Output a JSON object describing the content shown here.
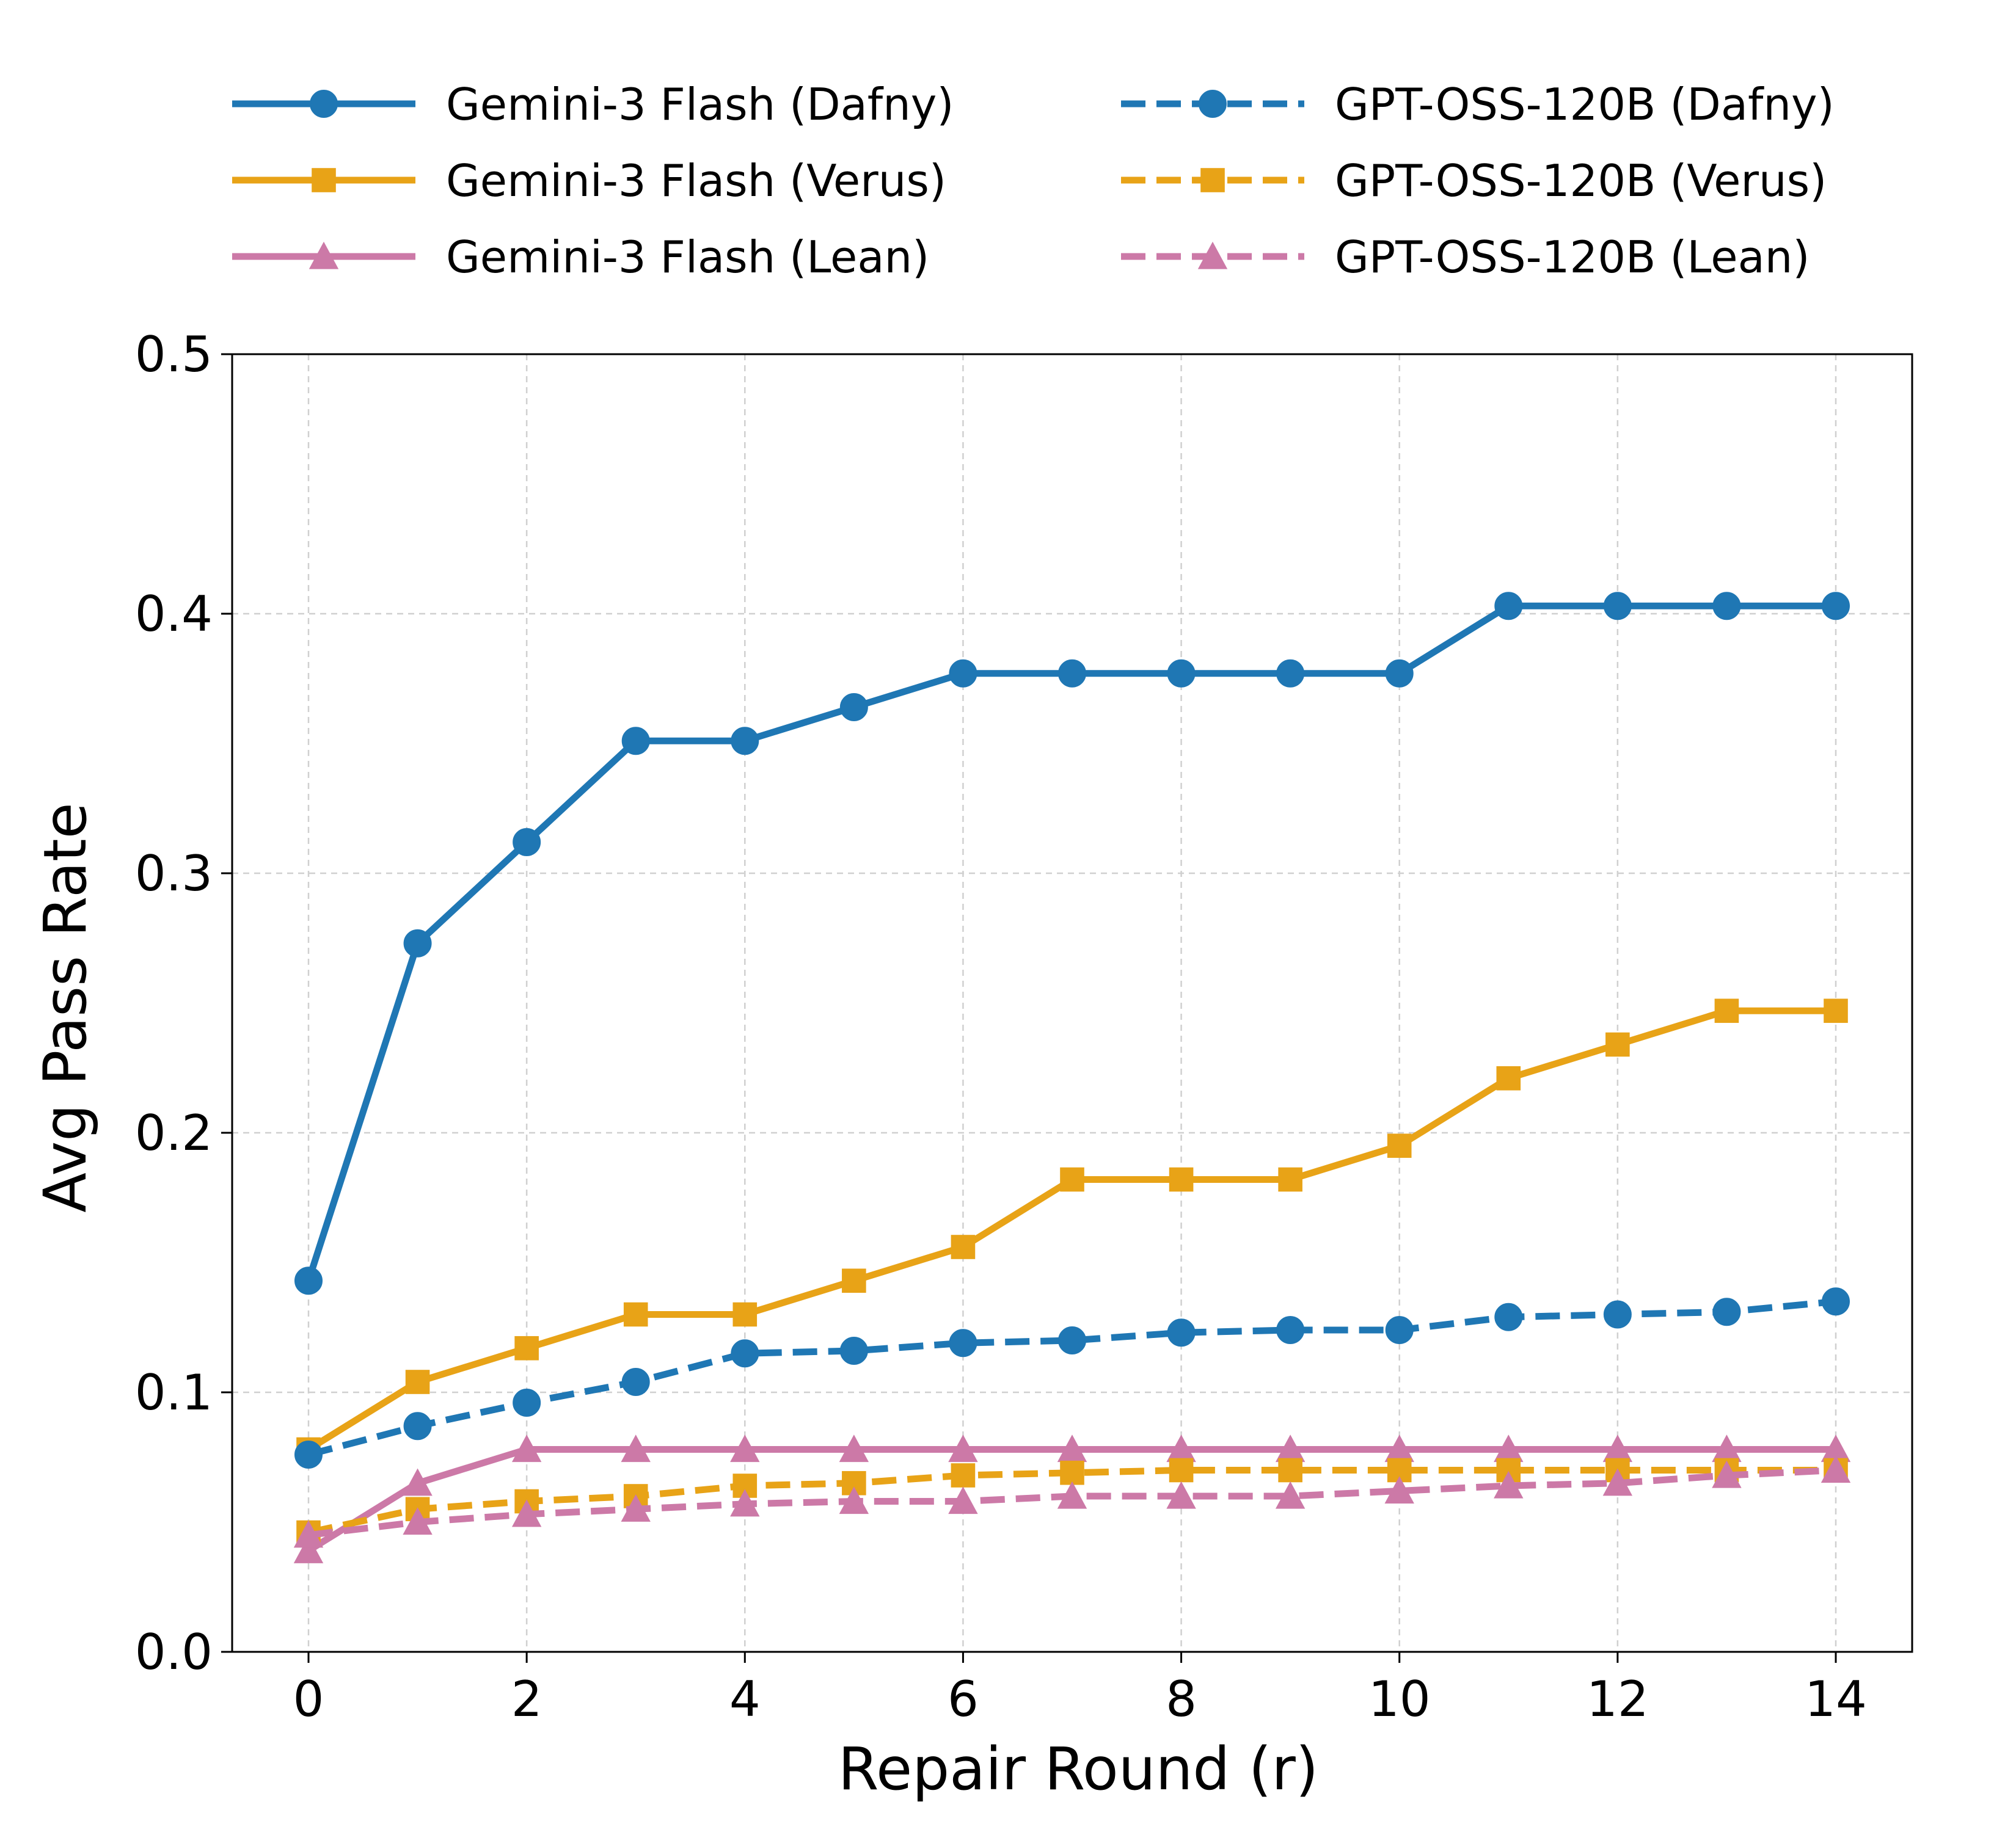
{
  "chart_data": {
    "type": "line",
    "title": "",
    "xlabel": "Repair Round (r)",
    "ylabel": "Avg Pass Rate",
    "xlim": [
      -0.7,
      14.7
    ],
    "ylim": [
      0.0,
      0.5
    ],
    "xticks": [
      0,
      2,
      4,
      6,
      8,
      10,
      12,
      14
    ],
    "xtick_labels": [
      "0",
      "2",
      "4",
      "6",
      "8",
      "10",
      "12",
      "14"
    ],
    "yticks": [
      0.0,
      0.1,
      0.2,
      0.3,
      0.4,
      0.5
    ],
    "ytick_labels": [
      "0.0",
      "0.1",
      "0.2",
      "0.3",
      "0.4",
      "0.5"
    ],
    "grid": true,
    "legend_position": "top, outside plot, two columns",
    "x": [
      0,
      1,
      2,
      3,
      4,
      5,
      6,
      7,
      8,
      9,
      10,
      11,
      12,
      13,
      14
    ],
    "series": [
      {
        "name": "Gemini-3 Flash (Dafny)",
        "color": "#1f77b4",
        "linestyle": "solid",
        "marker": "circle",
        "values": [
          0.143,
          0.273,
          0.312,
          0.351,
          0.351,
          0.364,
          0.377,
          0.377,
          0.377,
          0.377,
          0.377,
          0.403,
          0.403,
          0.403,
          0.403
        ]
      },
      {
        "name": "Gemini-3 Flash (Verus)",
        "color": "#e8a317",
        "linestyle": "solid",
        "marker": "square",
        "values": [
          0.078,
          0.104,
          0.117,
          0.13,
          0.13,
          0.143,
          0.156,
          0.182,
          0.182,
          0.182,
          0.195,
          0.221,
          0.234,
          0.247,
          0.247
        ]
      },
      {
        "name": "Gemini-3 Flash (Lean)",
        "color": "#cc79a7",
        "linestyle": "solid",
        "marker": "triangle",
        "values": [
          0.039,
          0.065,
          0.078,
          0.078,
          0.078,
          0.078,
          0.078,
          0.078,
          0.078,
          0.078,
          0.078,
          0.078,
          0.078,
          0.078,
          0.078
        ]
      },
      {
        "name": "GPT-OSS-120B (Dafny)",
        "color": "#1f77b4",
        "linestyle": "dashed",
        "marker": "circle",
        "values": [
          0.076,
          0.087,
          0.096,
          0.104,
          0.115,
          0.116,
          0.119,
          0.12,
          0.123,
          0.124,
          0.124,
          0.129,
          0.13,
          0.131,
          0.135
        ]
      },
      {
        "name": "GPT-OSS-120B (Verus)",
        "color": "#e8a317",
        "linestyle": "dashed",
        "marker": "square",
        "values": [
          0.046,
          0.055,
          0.058,
          0.06,
          0.064,
          0.065,
          0.068,
          0.069,
          0.07,
          0.07,
          0.07,
          0.07,
          0.07,
          0.07,
          0.07
        ]
      },
      {
        "name": "GPT-OSS-120B (Lean)",
        "color": "#cc79a7",
        "linestyle": "dashed",
        "marker": "triangle",
        "values": [
          0.045,
          0.05,
          0.053,
          0.055,
          0.057,
          0.058,
          0.058,
          0.06,
          0.06,
          0.06,
          0.062,
          0.064,
          0.065,
          0.068,
          0.07
        ]
      }
    ]
  }
}
